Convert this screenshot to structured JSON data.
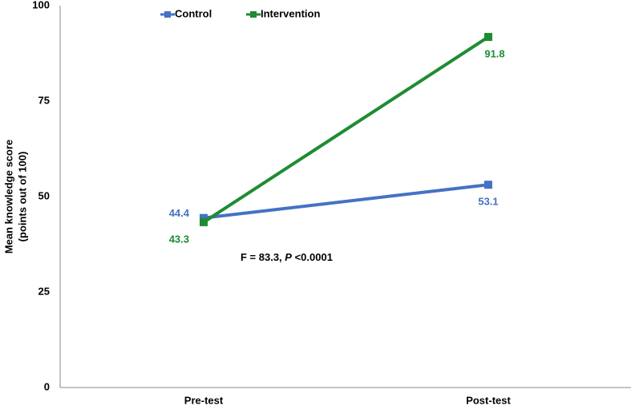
{
  "chart_data": {
    "type": "line",
    "y_label": [
      "Mean knowledge score",
      "(points out of 100)"
    ],
    "categories": [
      "Pre-test",
      "Post-test"
    ],
    "series": [
      {
        "name": "Control",
        "color": "#4472c4",
        "values": [
          44.4,
          53.1
        ]
      },
      {
        "name": "Intervention",
        "color": "#1e8c33",
        "values": [
          43.3,
          91.8
        ]
      }
    ],
    "annotation": [
      "F = 83.3, ",
      "P",
      " <0.0001"
    ],
    "ylim": [
      0,
      100
    ],
    "yticks": [
      0,
      25,
      50,
      75,
      100
    ]
  }
}
